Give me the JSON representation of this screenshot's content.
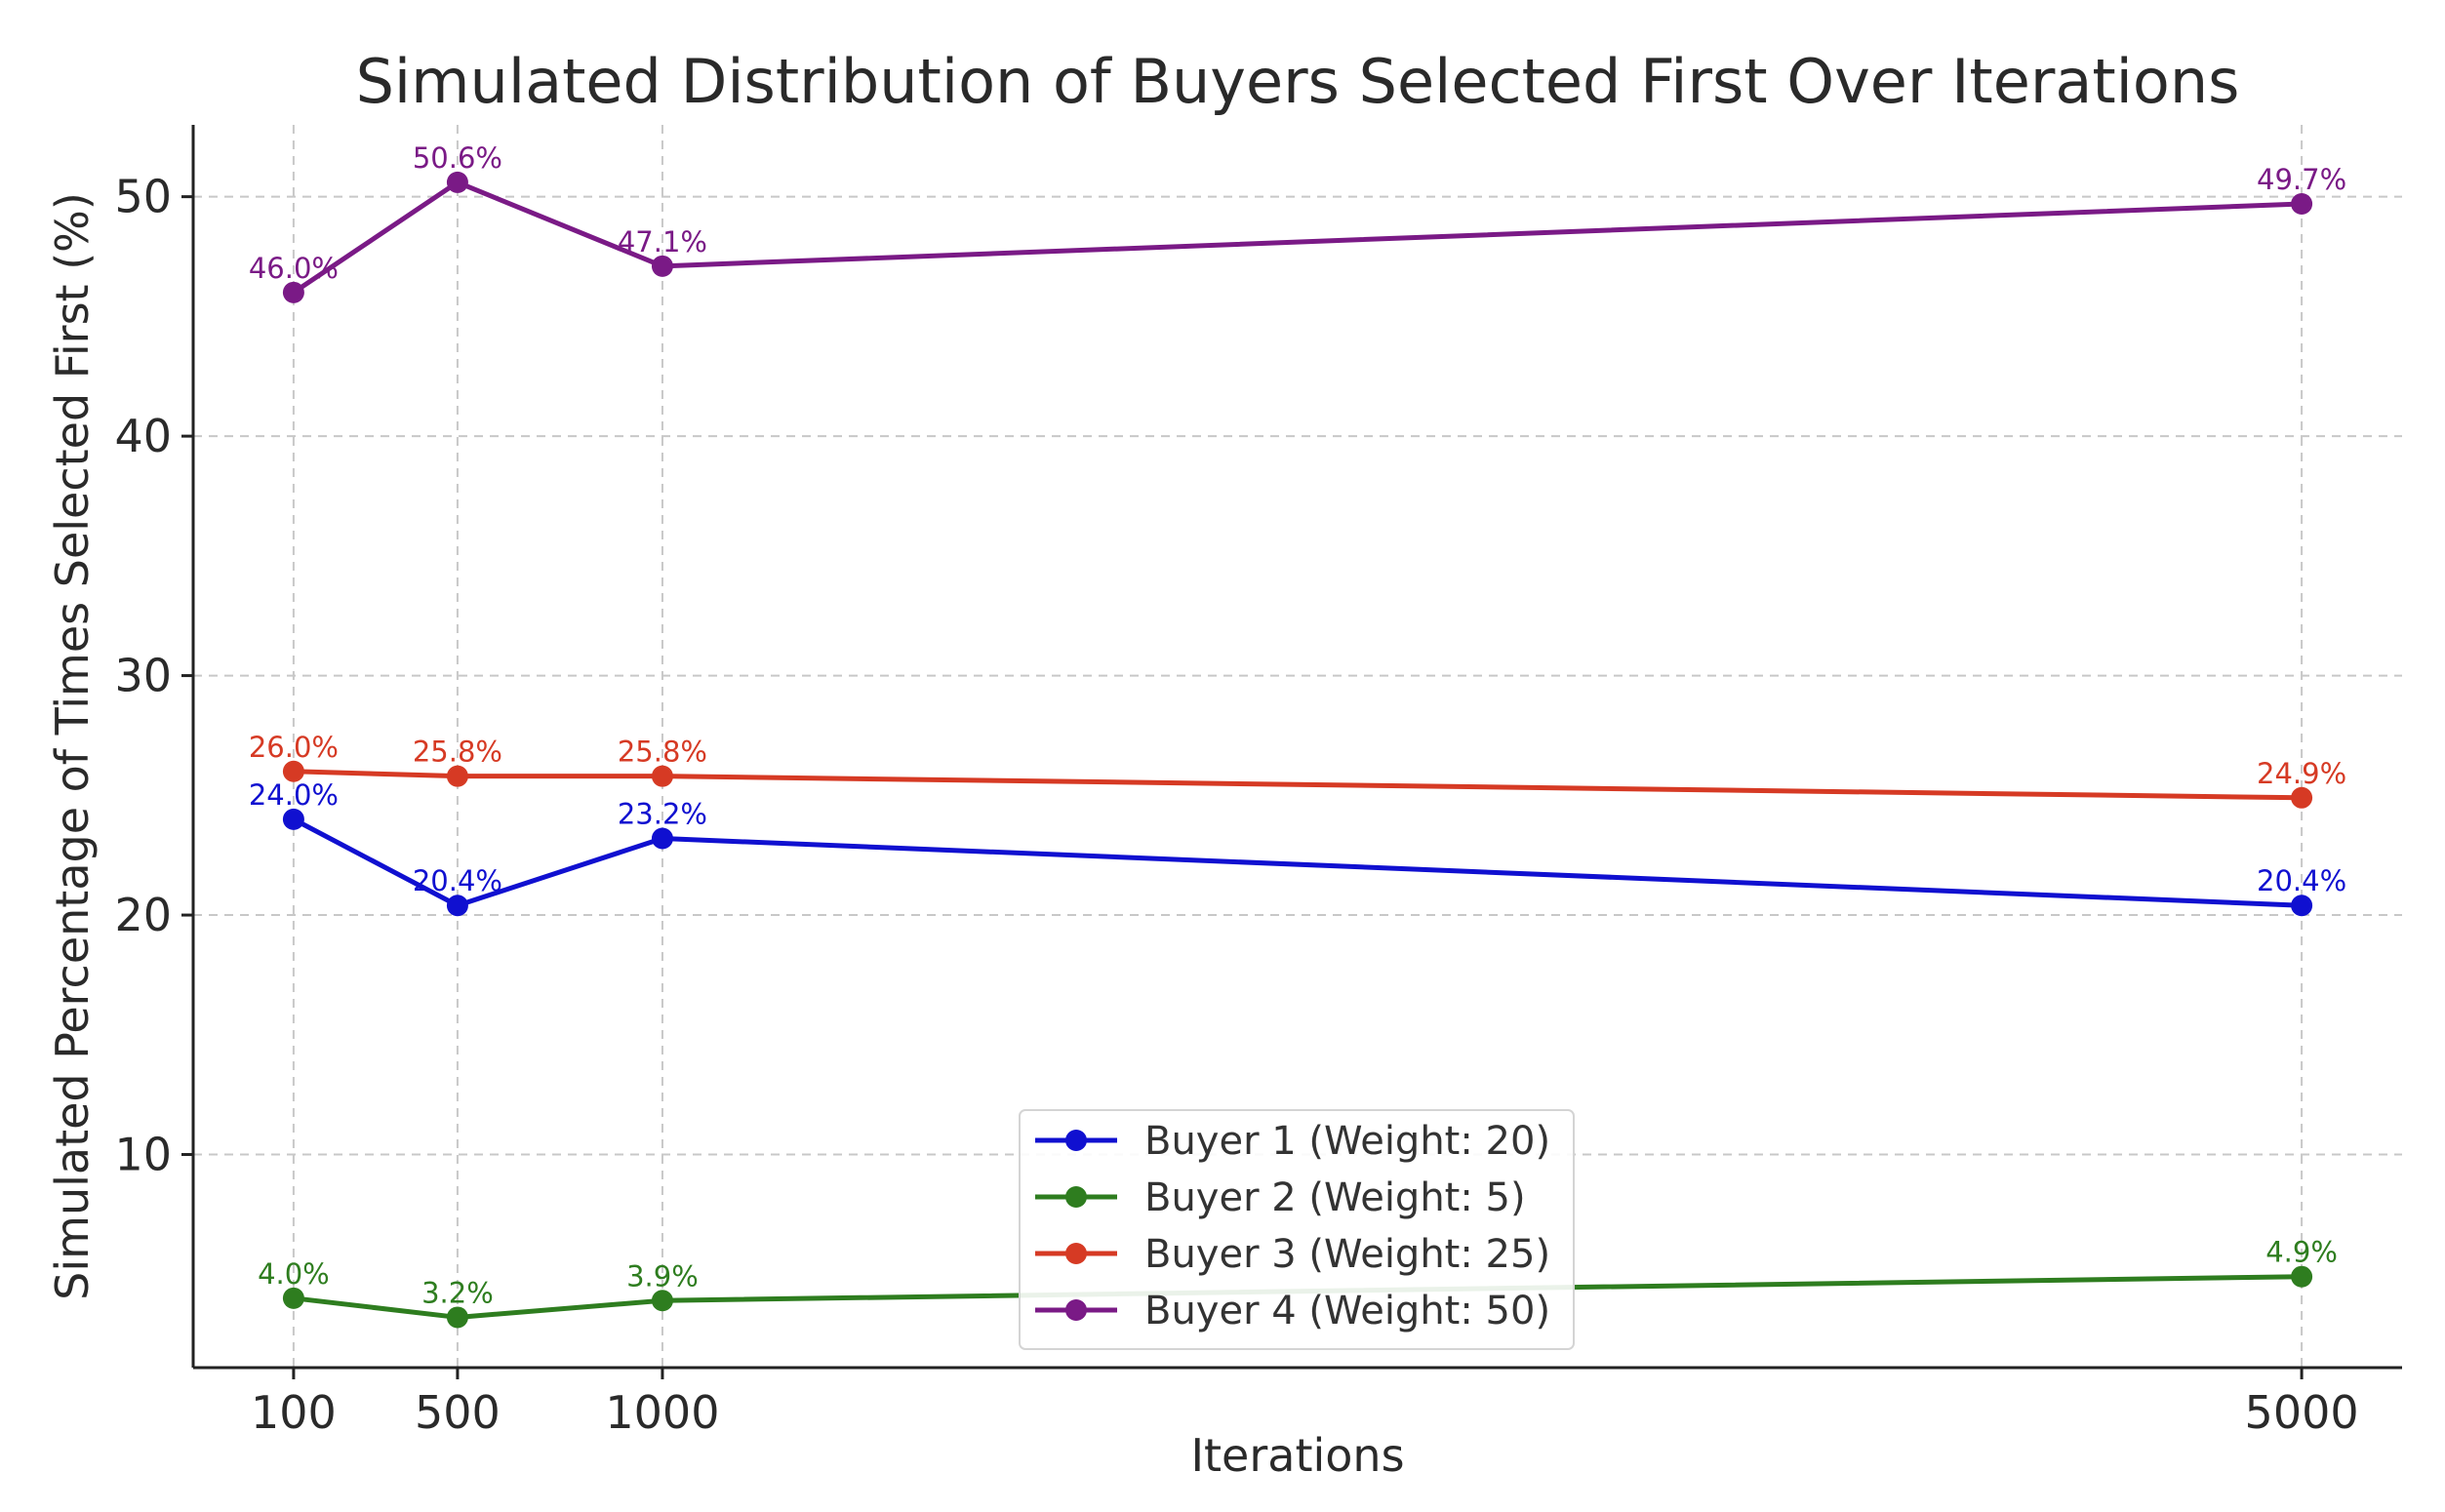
{
  "chart_data": {
    "type": "line",
    "title": "Simulated Distribution of Buyers Selected First Over Iterations",
    "xlabel": "Iterations",
    "ylabel": "Simulated Percentage of Times Selected First (%)",
    "x": [
      100,
      500,
      1000,
      5000
    ],
    "x_tick_labels": [
      "100",
      "500",
      "1000",
      "5000"
    ],
    "xlim": [
      -145,
      5245
    ],
    "ylim": [
      1.1,
      53
    ],
    "y_ticks": [
      10,
      20,
      30,
      40,
      50
    ],
    "y_tick_labels": [
      "10",
      "20",
      "30",
      "40",
      "50"
    ],
    "grid": true,
    "legend_position": "bottom-center",
    "series": [
      {
        "name": "Buyer 1 (Weight: 20)",
        "color": "#1010d0",
        "values": [
          24.0,
          20.4,
          23.2,
          20.4
        ],
        "labels": [
          "24.0%",
          "20.4%",
          "23.2%",
          "20.4%"
        ]
      },
      {
        "name": "Buyer 2 (Weight: 5)",
        "color": "#2e7d1f",
        "values": [
          4.0,
          3.2,
          3.9,
          4.9
        ],
        "labels": [
          "4.0%",
          "3.2%",
          "3.9%",
          "4.9%"
        ]
      },
      {
        "name": "Buyer 3 (Weight: 25)",
        "color": "#d63a24",
        "values": [
          26.0,
          25.8,
          25.8,
          24.9
        ],
        "labels": [
          "26.0%",
          "25.8%",
          "25.8%",
          "24.9%"
        ]
      },
      {
        "name": "Buyer 4 (Weight: 50)",
        "color": "#7a1a86",
        "values": [
          46.0,
          50.6,
          47.1,
          49.7
        ],
        "labels": [
          "46.0%",
          "50.6%",
          "47.1%",
          "49.7%"
        ]
      }
    ]
  }
}
